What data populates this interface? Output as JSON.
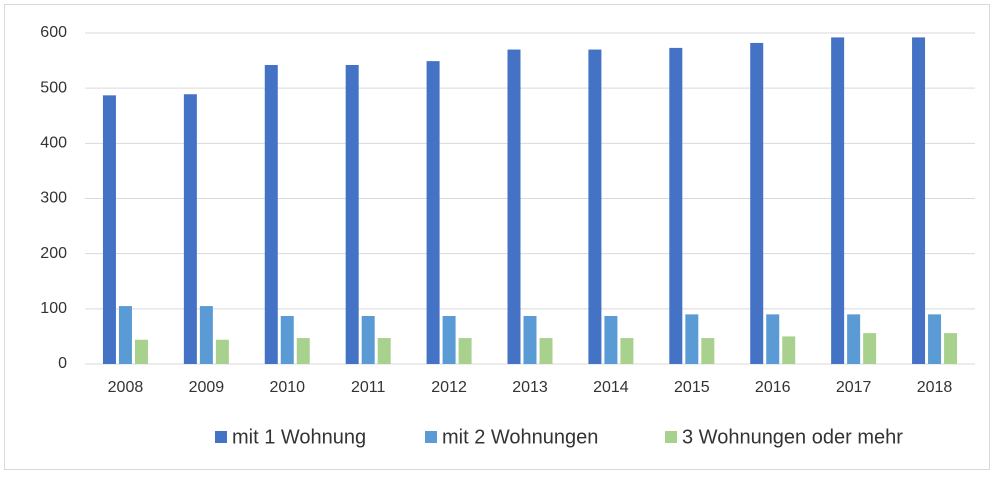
{
  "chart_data": {
    "type": "bar",
    "categories": [
      "2008",
      "2009",
      "2010",
      "2011",
      "2012",
      "2013",
      "2014",
      "2015",
      "2016",
      "2017",
      "2018"
    ],
    "series": [
      {
        "name": "mit 1 Wohnung",
        "color": "#4472c4",
        "values": [
          487,
          489,
          542,
          542,
          549,
          570,
          570,
          573,
          582,
          592,
          592
        ]
      },
      {
        "name": "mit 2 Wohnungen",
        "color": "#5b9bd5",
        "values": [
          105,
          105,
          87,
          87,
          87,
          87,
          87,
          90,
          90,
          90,
          90
        ]
      },
      {
        "name": "3 Wohnungen oder mehr",
        "color": "#a9d18e",
        "values": [
          44,
          44,
          47,
          47,
          47,
          47,
          47,
          47,
          50,
          56,
          56
        ]
      }
    ],
    "ylim": [
      0,
      600
    ],
    "yticks": [
      0,
      100,
      200,
      300,
      400,
      500,
      600
    ],
    "grid": true,
    "legend": "bottom"
  }
}
